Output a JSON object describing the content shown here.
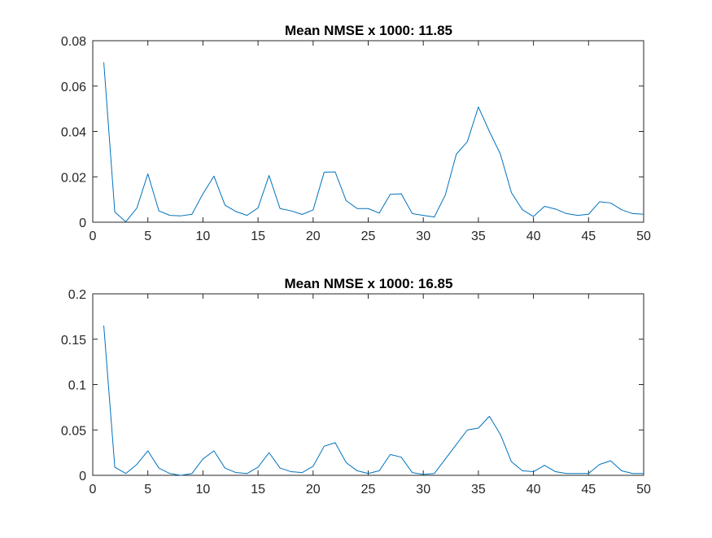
{
  "chart_data": [
    {
      "type": "line",
      "title": "Mean NMSE x 1000: 11.85",
      "xlabel": "",
      "ylabel": "",
      "xlim": [
        0,
        50
      ],
      "ylim": [
        0,
        0.08
      ],
      "xticks": [
        0,
        5,
        10,
        15,
        20,
        25,
        30,
        35,
        40,
        45,
        50
      ],
      "xtick_labels": [
        "0",
        "5",
        "10",
        "15",
        "20",
        "25",
        "30",
        "35",
        "40",
        "45",
        "50"
      ],
      "yticks": [
        0,
        0.02,
        0.04,
        0.06,
        0.08
      ],
      "ytick_labels": [
        "0",
        "0.02",
        "0.04",
        "0.06",
        "0.08"
      ],
      "grid": false,
      "series": [
        {
          "color": "#0072BD",
          "x": [
            1,
            2,
            3,
            4,
            5,
            6,
            7,
            8,
            9,
            10,
            11,
            12,
            13,
            14,
            15,
            16,
            17,
            18,
            19,
            20,
            21,
            22,
            23,
            24,
            25,
            26,
            27,
            28,
            29,
            30,
            31,
            32,
            33,
            34,
            35,
            36,
            37,
            38,
            39,
            40,
            41,
            42,
            43,
            44,
            45,
            46,
            47,
            48,
            49,
            50
          ],
          "y": [
            0.0705,
            0.0045,
            0.0002,
            0.0062,
            0.0213,
            0.005,
            0.003,
            0.0028,
            0.0035,
            0.0125,
            0.0203,
            0.0075,
            0.0047,
            0.003,
            0.0063,
            0.0206,
            0.006,
            0.005,
            0.0034,
            0.0054,
            0.022,
            0.0222,
            0.0095,
            0.006,
            0.006,
            0.004,
            0.0123,
            0.0125,
            0.0038,
            0.003,
            0.0023,
            0.012,
            0.03,
            0.0355,
            0.0508,
            0.04,
            0.03,
            0.013,
            0.0055,
            0.0025,
            0.007,
            0.0058,
            0.0038,
            0.003,
            0.0035,
            0.009,
            0.0085,
            0.0055,
            0.0038,
            0.0035
          ]
        }
      ]
    },
    {
      "type": "line",
      "title": "Mean NMSE x 1000: 16.85",
      "xlabel": "",
      "ylabel": "",
      "xlim": [
        0,
        50
      ],
      "ylim": [
        0,
        0.2
      ],
      "xticks": [
        0,
        5,
        10,
        15,
        20,
        25,
        30,
        35,
        40,
        45,
        50
      ],
      "xtick_labels": [
        "0",
        "5",
        "10",
        "15",
        "20",
        "25",
        "30",
        "35",
        "40",
        "45",
        "50"
      ],
      "yticks": [
        0,
        0.05,
        0.1,
        0.15,
        0.2
      ],
      "ytick_labels": [
        "0",
        "0.05",
        "0.1",
        "0.15",
        "0.2"
      ],
      "grid": false,
      "series": [
        {
          "color": "#0072BD",
          "x": [
            1,
            2,
            3,
            4,
            5,
            6,
            7,
            8,
            9,
            10,
            11,
            12,
            13,
            14,
            15,
            16,
            17,
            18,
            19,
            20,
            21,
            22,
            23,
            24,
            25,
            26,
            27,
            28,
            29,
            30,
            31,
            32,
            33,
            34,
            35,
            36,
            37,
            38,
            39,
            40,
            41,
            42,
            43,
            44,
            45,
            46,
            47,
            48,
            49,
            50
          ],
          "y": [
            0.165,
            0.009,
            0.002,
            0.012,
            0.027,
            0.008,
            0.002,
            0.0,
            0.002,
            0.018,
            0.027,
            0.008,
            0.003,
            0.002,
            0.009,
            0.025,
            0.008,
            0.004,
            0.003,
            0.01,
            0.032,
            0.036,
            0.014,
            0.005,
            0.002,
            0.005,
            0.023,
            0.02,
            0.003,
            0.001,
            0.002,
            0.018,
            0.034,
            0.05,
            0.052,
            0.065,
            0.045,
            0.015,
            0.005,
            0.004,
            0.011,
            0.004,
            0.002,
            0.002,
            0.002,
            0.012,
            0.016,
            0.005,
            0.002,
            0.002
          ]
        }
      ]
    }
  ]
}
